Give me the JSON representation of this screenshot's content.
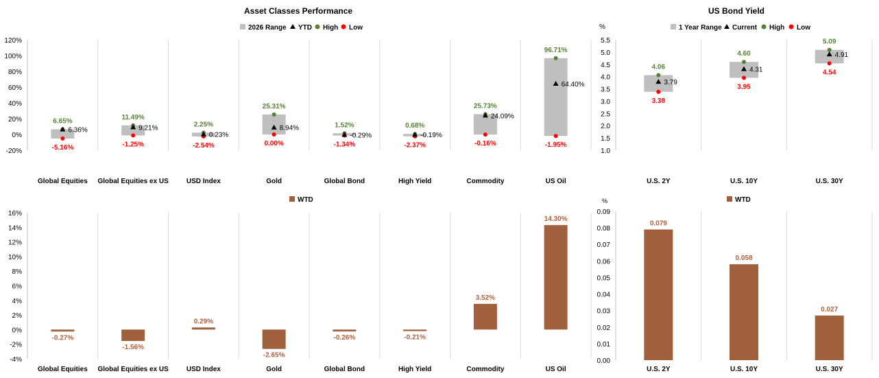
{
  "chart_data": [
    {
      "type": "bar",
      "title": "Asset Classes Performance",
      "legend": [
        "2026 Range",
        "YTD",
        "High",
        "Low"
      ],
      "legend_position": "top",
      "categories": [
        "Global Equities",
        "Global Equities ex US",
        "USD Index",
        "Gold",
        "Global Bond",
        "High Yield",
        "Commodity",
        "US Oil"
      ],
      "yticks": [
        "-20%",
        "0%",
        "20%",
        "40%",
        "60%",
        "80%",
        "100%",
        "120%"
      ],
      "ylim": [
        -20,
        120
      ],
      "grid": "vertical",
      "series": [
        {
          "name": "High",
          "values": [
            6.65,
            11.49,
            2.25,
            25.31,
            1.52,
            0.68,
            25.73,
            96.71
          ],
          "labels": [
            "6.65%",
            "11.49%",
            "2.25%",
            "25.31%",
            "1.52%",
            "0.68%",
            "25.73%",
            "96.71%"
          ]
        },
        {
          "name": "YTD",
          "values": [
            6.36,
            9.21,
            0.23,
            8.94,
            -0.29,
            -0.19,
            24.09,
            64.4
          ],
          "labels": [
            "6.36%",
            "9.21%",
            "0.23%",
            "8.94%",
            "-0.29%",
            "-0.19%",
            "24.09%",
            "64.40%"
          ]
        },
        {
          "name": "Low",
          "values": [
            -5.16,
            -1.25,
            -2.54,
            0.0,
            -1.34,
            -2.37,
            -0.16,
            -1.95
          ],
          "labels": [
            "-5.16%",
            "-1.25%",
            "-2.54%",
            "0.00%",
            "-1.34%",
            "-2.37%",
            "-0.16%",
            "-1.95%"
          ]
        }
      ]
    },
    {
      "type": "bar",
      "title": "US Bond Yield",
      "ylabel": "%",
      "legend": [
        "1 Year Range",
        "Current",
        "High",
        "Low"
      ],
      "legend_position": "top",
      "categories": [
        "U.S. 2Y",
        "U.S. 10Y",
        "U.S. 30Y"
      ],
      "yticks": [
        "1.0",
        "1.5",
        "2.0",
        "2.5",
        "3.0",
        "3.5",
        "4.0",
        "4.5",
        "5.0",
        "5.5"
      ],
      "ylim": [
        1.0,
        5.5
      ],
      "grid": "vertical",
      "series": [
        {
          "name": "High",
          "values": [
            4.06,
            4.6,
            5.09
          ],
          "labels": [
            "4.06",
            "4.60",
            "5.09"
          ]
        },
        {
          "name": "Current",
          "values": [
            3.79,
            4.31,
            4.91
          ],
          "labels": [
            "3.79",
            "4.31",
            "4.91"
          ]
        },
        {
          "name": "Low",
          "values": [
            3.38,
            3.95,
            4.54
          ],
          "labels": [
            "3.38",
            "3.95",
            "4.54"
          ]
        }
      ]
    },
    {
      "type": "bar",
      "legend": [
        "WTD"
      ],
      "legend_position": "top",
      "categories": [
        "Global Equities",
        "Global Equities ex US",
        "USD Index",
        "Gold",
        "Global Bond",
        "High Yield",
        "Commodity",
        "US Oil"
      ],
      "yticks": [
        "-4%",
        "-2%",
        "0%",
        "2%",
        "4%",
        "6%",
        "8%",
        "10%",
        "12%",
        "14%",
        "16%"
      ],
      "ylim": [
        -4,
        16
      ],
      "grid": "vertical",
      "series": [
        {
          "name": "WTD",
          "values": [
            -0.27,
            -1.56,
            0.29,
            -2.65,
            -0.26,
            -0.21,
            3.52,
            14.3
          ],
          "labels": [
            "-0.27%",
            "-1.56%",
            "0.29%",
            "-2.65%",
            "-0.26%",
            "-0.21%",
            "3.52%",
            "14.30%"
          ]
        }
      ]
    },
    {
      "type": "bar",
      "ylabel": "%",
      "legend": [
        "WTD"
      ],
      "legend_position": "top",
      "categories": [
        "U.S. 2Y",
        "U.S. 10Y",
        "U.S. 30Y"
      ],
      "yticks": [
        "0.00",
        "0.01",
        "0.02",
        "0.03",
        "0.04",
        "0.05",
        "0.06",
        "0.07",
        "0.08",
        "0.09"
      ],
      "ylim": [
        0,
        0.09
      ],
      "grid": "vertical",
      "series": [
        {
          "name": "WTD",
          "values": [
            0.079,
            0.058,
            0.027
          ],
          "labels": [
            "0.079",
            "0.058",
            "0.027"
          ]
        }
      ]
    }
  ],
  "colors": {
    "range": "#bfbfbf",
    "high": "#548235",
    "low": "#ff0000",
    "marker": "#000000",
    "wtd_bar": "#a0603c",
    "wtd_label": "#b0603a",
    "grid": "#d9d9d9",
    "axis_text": "#000000"
  }
}
